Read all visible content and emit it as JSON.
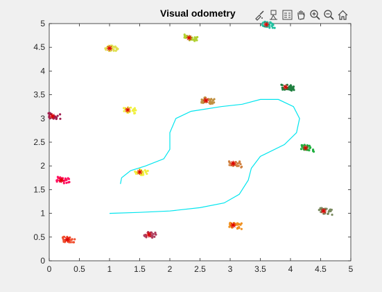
{
  "figure": {
    "title": "Visual odometry",
    "toolbar": [
      {
        "icon": "brush-data-icon"
      },
      {
        "icon": "data-tips-icon"
      },
      {
        "icon": "insert-legend-icon"
      },
      {
        "icon": "pan-hand-icon"
      },
      {
        "icon": "zoom-in-icon"
      },
      {
        "icon": "zoom-out-icon"
      },
      {
        "icon": "home-restore-view-icon"
      }
    ]
  },
  "chart_data": {
    "type": "scatter",
    "title": "Visual odometry",
    "xlabel": "",
    "ylabel": "",
    "xlim": [
      0,
      5
    ],
    "ylim": [
      0,
      5
    ],
    "x_ticks": [
      "0",
      "0.5",
      "1",
      "1.5",
      "2",
      "2.5",
      "3",
      "3.5",
      "4",
      "4.5",
      "5"
    ],
    "y_ticks": [
      "0",
      "0.5",
      "1",
      "1.5",
      "2",
      "2.5",
      "3",
      "3.5",
      "4",
      "4.5",
      "5"
    ],
    "grid": false,
    "trajectory": {
      "color": "#00e5ee",
      "points": [
        [
          1.0,
          1.0
        ],
        [
          1.5,
          1.02
        ],
        [
          2.0,
          1.05
        ],
        [
          2.5,
          1.12
        ],
        [
          2.9,
          1.22
        ],
        [
          3.15,
          1.4
        ],
        [
          3.3,
          1.7
        ],
        [
          3.35,
          1.95
        ],
        [
          3.5,
          2.2
        ],
        [
          3.9,
          2.45
        ],
        [
          4.1,
          2.7
        ],
        [
          4.15,
          3.0
        ],
        [
          4.05,
          3.25
        ],
        [
          3.8,
          3.4
        ],
        [
          3.5,
          3.4
        ],
        [
          3.2,
          3.3
        ],
        [
          2.85,
          3.25
        ],
        [
          2.6,
          3.2
        ],
        [
          2.35,
          3.15
        ],
        [
          2.1,
          3.0
        ],
        [
          2.0,
          2.7
        ],
        [
          2.0,
          2.35
        ],
        [
          1.9,
          2.15
        ],
        [
          1.6,
          2.0
        ],
        [
          1.35,
          1.9
        ],
        [
          1.2,
          1.75
        ],
        [
          1.18,
          1.62
        ]
      ]
    },
    "landmarks": [
      {
        "x": 0.05,
        "y": 3.05,
        "color": "#a02050"
      },
      {
        "x": 0.2,
        "y": 1.7,
        "color": "#ff1060"
      },
      {
        "x": 0.3,
        "y": 0.45,
        "color": "#f05030"
      },
      {
        "x": 1.0,
        "y": 4.48,
        "color": "#e0e050"
      },
      {
        "x": 1.3,
        "y": 3.18,
        "color": "#f0f040"
      },
      {
        "x": 1.5,
        "y": 1.87,
        "color": "#f0f040"
      },
      {
        "x": 1.65,
        "y": 0.55,
        "color": "#b04060"
      },
      {
        "x": 2.32,
        "y": 4.7,
        "color": "#b0d030"
      },
      {
        "x": 2.6,
        "y": 3.38,
        "color": "#c09040"
      },
      {
        "x": 3.05,
        "y": 2.05,
        "color": "#d08040"
      },
      {
        "x": 3.05,
        "y": 0.75,
        "color": "#f09020"
      },
      {
        "x": 3.6,
        "y": 4.98,
        "color": "#20c0a0"
      },
      {
        "x": 3.92,
        "y": 3.66,
        "color": "#208040"
      },
      {
        "x": 4.25,
        "y": 2.38,
        "color": "#20b040"
      },
      {
        "x": 4.55,
        "y": 1.05,
        "color": "#7a8a60"
      }
    ],
    "marker_color": "#e00000"
  }
}
